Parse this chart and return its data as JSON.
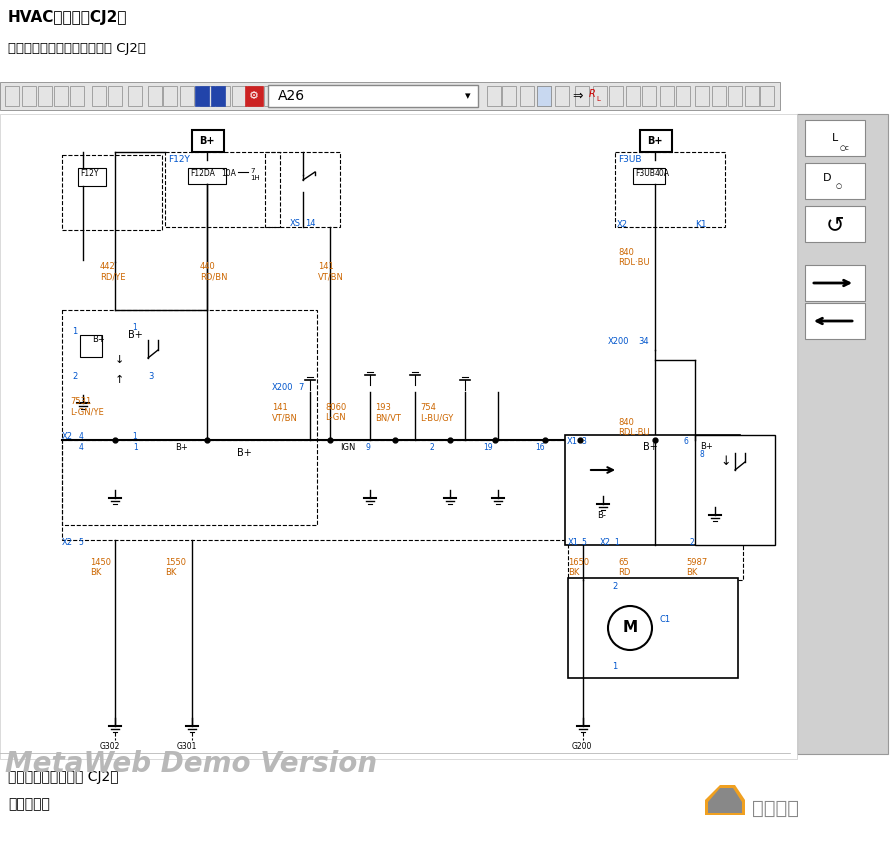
{
  "title1": "HVAC示意图（CJ2）",
  "title2": "电源、携鐵和鼓风机电机（带 CJ2）",
  "bottom_text1": "压缩机控制装置（带 CJ2）",
  "bottom_text2": "击显示图牌",
  "toolbar_label": "A26",
  "watermark": "MetaWeb Demo Version",
  "bg_color": "#ffffff",
  "line_color": "#000000",
  "blue_text": "#0055cc",
  "orange_text": "#cc6600",
  "gray_text": "#aaaaaa",
  "toolbar_bg": "#e8e8e8",
  "right_panel_bg": "#d8d8d8"
}
